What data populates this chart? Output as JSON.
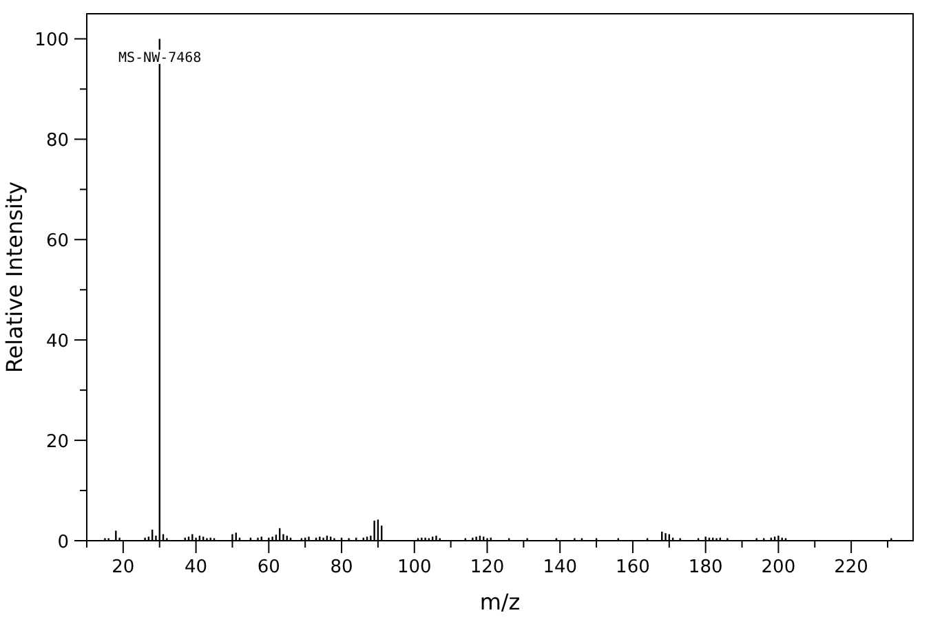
{
  "chart_data": {
    "type": "bar",
    "xlabel": "m/z",
    "ylabel": "Relative Intensity",
    "annotations": [
      "MS-NW-7468"
    ],
    "x": [
      15,
      16,
      18,
      19,
      26,
      27,
      28,
      29,
      30,
      31,
      32,
      37,
      38,
      39,
      40,
      41,
      42,
      43,
      44,
      45,
      50,
      51,
      52,
      55,
      57,
      58,
      60,
      61,
      62,
      63,
      64,
      65,
      66,
      69,
      70,
      71,
      73,
      74,
      75,
      76,
      77,
      78,
      80,
      82,
      84,
      86,
      87,
      88,
      89,
      90,
      91,
      101,
      102,
      103,
      104,
      105,
      106,
      107,
      114,
      116,
      117,
      118,
      119,
      120,
      121,
      126,
      131,
      139,
      144,
      146,
      150,
      156,
      164,
      168,
      169,
      170,
      171,
      173,
      178,
      180,
      181,
      182,
      183,
      184,
      186,
      194,
      196,
      198,
      199,
      200,
      201,
      202,
      231
    ],
    "values": [
      0.5,
      0.5,
      2,
      0.6,
      0.6,
      0.8,
      2.2,
      1,
      100,
      1.3,
      0.5,
      0.6,
      0.8,
      1.3,
      0.6,
      1,
      0.8,
      0.5,
      0.6,
      0.5,
      1.3,
      1.6,
      0.6,
      0.6,
      0.6,
      0.8,
      0.6,
      0.8,
      1.2,
      2.5,
      1.3,
      1,
      0.6,
      0.5,
      0.6,
      0.8,
      0.6,
      0.8,
      0.6,
      1,
      0.8,
      0.5,
      0.6,
      0.5,
      0.6,
      0.6,
      0.8,
      1,
      4,
      4.2,
      3,
      0.5,
      0.6,
      0.6,
      0.5,
      0.8,
      1,
      0.5,
      0.5,
      0.6,
      0.8,
      1,
      0.8,
      0.5,
      0.6,
      0.5,
      0.5,
      0.5,
      0.5,
      0.5,
      0.5,
      0.5,
      0.5,
      1.8,
      1.5,
      1.3,
      0.6,
      0.5,
      0.5,
      0.8,
      0.6,
      0.6,
      0.5,
      0.6,
      0.5,
      0.5,
      0.5,
      0.6,
      0.8,
      1,
      0.6,
      0.5,
      0.5
    ],
    "color": "#000000",
    "xlim": [
      10,
      237
    ],
    "ylim": [
      0,
      105
    ],
    "xticks": [
      {
        "value": 10,
        "label": null
      },
      20,
      {
        "value": 30,
        "label": null
      },
      40,
      {
        "value": 50,
        "label": null
      },
      60,
      {
        "value": 70,
        "label": null
      },
      80,
      {
        "value": 90,
        "label": null
      },
      100,
      {
        "value": 110,
        "label": null
      },
      120,
      {
        "value": 130,
        "label": null
      },
      140,
      {
        "value": 150,
        "label": null
      },
      160,
      {
        "value": 170,
        "label": null
      },
      180,
      {
        "value": 190,
        "label": null
      },
      200,
      {
        "value": 210,
        "label": null
      },
      220,
      {
        "value": 230,
        "label": null
      }
    ],
    "yticks": [
      0,
      {
        "value": 10,
        "label": null
      },
      20,
      {
        "value": 30,
        "label": null
      },
      40,
      {
        "value": 50,
        "label": null
      },
      60,
      {
        "value": 70,
        "label": null
      },
      80,
      {
        "value": 90,
        "label": null
      },
      100
    ],
    "grid": false
  }
}
